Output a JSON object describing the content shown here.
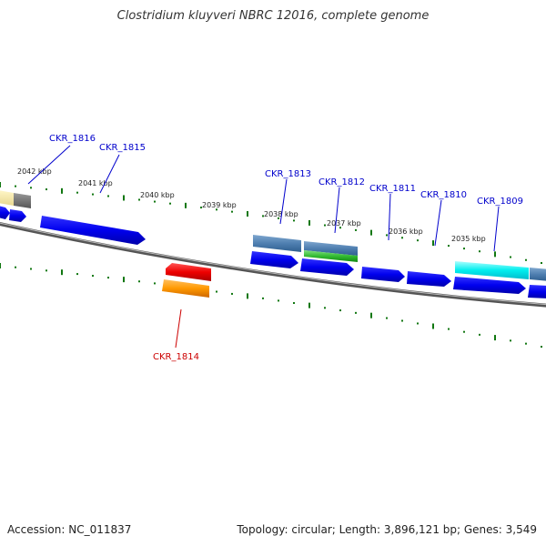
{
  "title": "Clostridium kluyveri NBRC 12016, complete genome",
  "footer": {
    "accession": "Accession: NC_011837",
    "topology": "Topology: circular; Length: 3,896,121 bp; Genes: 3,549"
  },
  "scale_labels": [
    "2042 kbp",
    "2041 kbp",
    "2040 kbp",
    "2039 kbp",
    "2038 kbp",
    "2037 kbp",
    "2036 kbp",
    "2035 kbp"
  ],
  "gene_labels": [
    {
      "text": "CKR_1816",
      "color": "#0000cc"
    },
    {
      "text": "CKR_1815",
      "color": "#0000cc"
    },
    {
      "text": "CKR_1813",
      "color": "#0000cc"
    },
    {
      "text": "CKR_1812",
      "color": "#0000cc"
    },
    {
      "text": "CKR_1811",
      "color": "#0000cc"
    },
    {
      "text": "CKR_1810",
      "color": "#0000cc"
    },
    {
      "text": "CKR_1809",
      "color": "#0000cc"
    },
    {
      "text": "CKR_1814",
      "color": "#cc0000"
    }
  ]
}
